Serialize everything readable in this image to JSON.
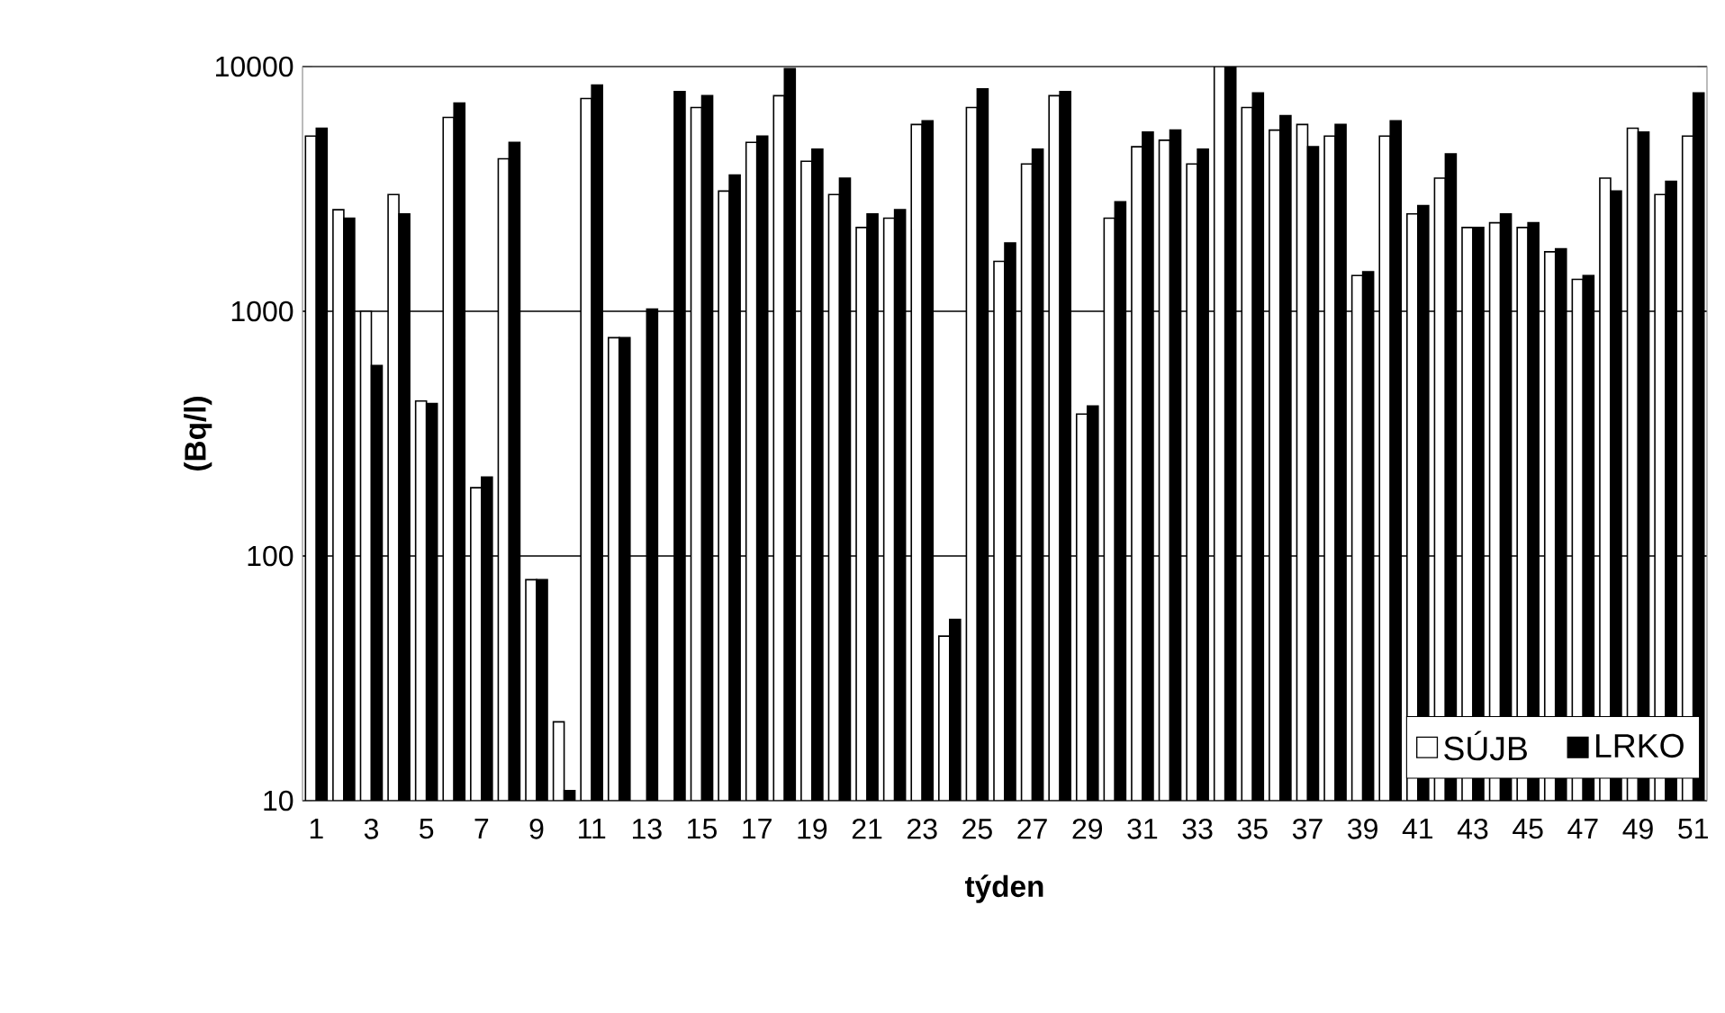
{
  "chart_data": {
    "type": "bar",
    "xlabel": "týden",
    "ylabel": "(Bq/l)",
    "categories": [
      "1",
      null,
      "3",
      null,
      "5",
      null,
      "7",
      null,
      "9",
      null,
      "11",
      null,
      "13",
      null,
      "15",
      null,
      "17",
      null,
      "19",
      null,
      "21",
      null,
      "23",
      null,
      "25",
      null,
      "27",
      null,
      "29",
      null,
      "31",
      null,
      "33",
      null,
      "35",
      null,
      "37",
      null,
      "39",
      null,
      "41",
      null,
      "43",
      null,
      "45",
      null,
      "47",
      null,
      "49",
      null,
      "51"
    ],
    "series": [
      {
        "name": "SÚJB",
        "color": "#ffffff",
        "values": [
          5200,
          2600,
          1000,
          3000,
          430,
          6200,
          190,
          4200,
          80,
          21,
          7400,
          780,
          null,
          null,
          6800,
          3100,
          4900,
          7600,
          4100,
          3000,
          2200,
          2400,
          5800,
          47,
          6800,
          1600,
          4000,
          7600,
          380,
          2400,
          4700,
          5000,
          4000,
          10000,
          6800,
          5500,
          5800,
          5200,
          1400,
          5200,
          2500,
          3500,
          2200,
          2300,
          2200,
          1750,
          1350,
          3500,
          5600,
          3000,
          5200
        ]
      },
      {
        "name": "LRKO",
        "color": "#000000",
        "values": [
          5600,
          2400,
          600,
          2500,
          420,
          7100,
          210,
          4900,
          80,
          11,
          8400,
          780,
          1020,
          7900,
          7600,
          3600,
          5200,
          9800,
          4600,
          3500,
          2500,
          2600,
          6000,
          55,
          8100,
          1900,
          4600,
          7900,
          410,
          2800,
          5400,
          5500,
          4600,
          10000,
          7800,
          6300,
          4700,
          5800,
          1450,
          6000,
          2700,
          4400,
          2200,
          2500,
          2300,
          1800,
          1400,
          3100,
          5400,
          3400,
          7800
        ]
      }
    ],
    "log": "y",
    "ylim": [
      10,
      10000
    ],
    "yticks": [
      10,
      100,
      1000,
      10000
    ],
    "grid": "y",
    "legend": "bottom right"
  }
}
